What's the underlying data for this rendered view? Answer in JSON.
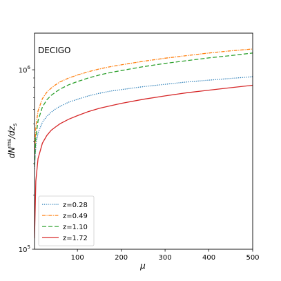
{
  "chart_data": {
    "type": "line",
    "annotation": "DECIGO",
    "xlabel": "μ",
    "ylabel": "dNms/dzs",
    "ylabel_parts": {
      "d1": "d",
      "N": "N",
      "sup": "ms",
      "mid": "/d",
      "z": "z",
      "sub": "s"
    },
    "xlim": [
      2,
      500
    ],
    "ylim": [
      100000,
      1600000
    ],
    "yscale": "log",
    "xticks": [
      100,
      200,
      300,
      400,
      500
    ],
    "yticks": [
      {
        "value": 100000,
        "label": "10",
        "exp": "5"
      },
      {
        "value": 1000000,
        "label": "10",
        "exp": "6"
      }
    ],
    "grid": false,
    "legend_position": "lower-left",
    "x": [
      2,
      5,
      10,
      20,
      30,
      40,
      50,
      60,
      80,
      100,
      125,
      150,
      175,
      200,
      250,
      300,
      350,
      400,
      450,
      500
    ],
    "series": [
      {
        "name": "z=0.28",
        "color": "#1f77b4",
        "dash": "1.2,1.6",
        "values": [
          280000,
          380000,
          445000,
          510000,
          550000,
          580000,
          605000,
          625000,
          660000,
          685000,
          715000,
          740000,
          760000,
          775000,
          805000,
          830000,
          855000,
          875000,
          895000,
          915000
        ]
      },
      {
        "name": "z=0.49",
        "color": "#ff7f0e",
        "dash": "5,1.5,1.2,1.5",
        "values": [
          330000,
          480000,
          590000,
          690000,
          750000,
          790000,
          825000,
          855000,
          900000,
          935000,
          975000,
          1010000,
          1040000,
          1065000,
          1115000,
          1160000,
          1200000,
          1240000,
          1275000,
          1305000
        ]
      },
      {
        "name": "z=1.10",
        "color": "#2ca02c",
        "dash": "6,3",
        "values": [
          290000,
          420000,
          520000,
          620000,
          680000,
          720000,
          750000,
          780000,
          825000,
          860000,
          900000,
          935000,
          965000,
          990000,
          1040000,
          1085000,
          1125000,
          1165000,
          1200000,
          1240000
        ]
      },
      {
        "name": "z=1.72",
        "color": "#d62728",
        "dash": "",
        "values": [
          115000,
          240000,
          320000,
          390000,
          430000,
          460000,
          480000,
          500000,
          530000,
          555000,
          585000,
          610000,
          630000,
          650000,
          685000,
          715000,
          745000,
          770000,
          795000,
          820000
        ]
      }
    ]
  }
}
